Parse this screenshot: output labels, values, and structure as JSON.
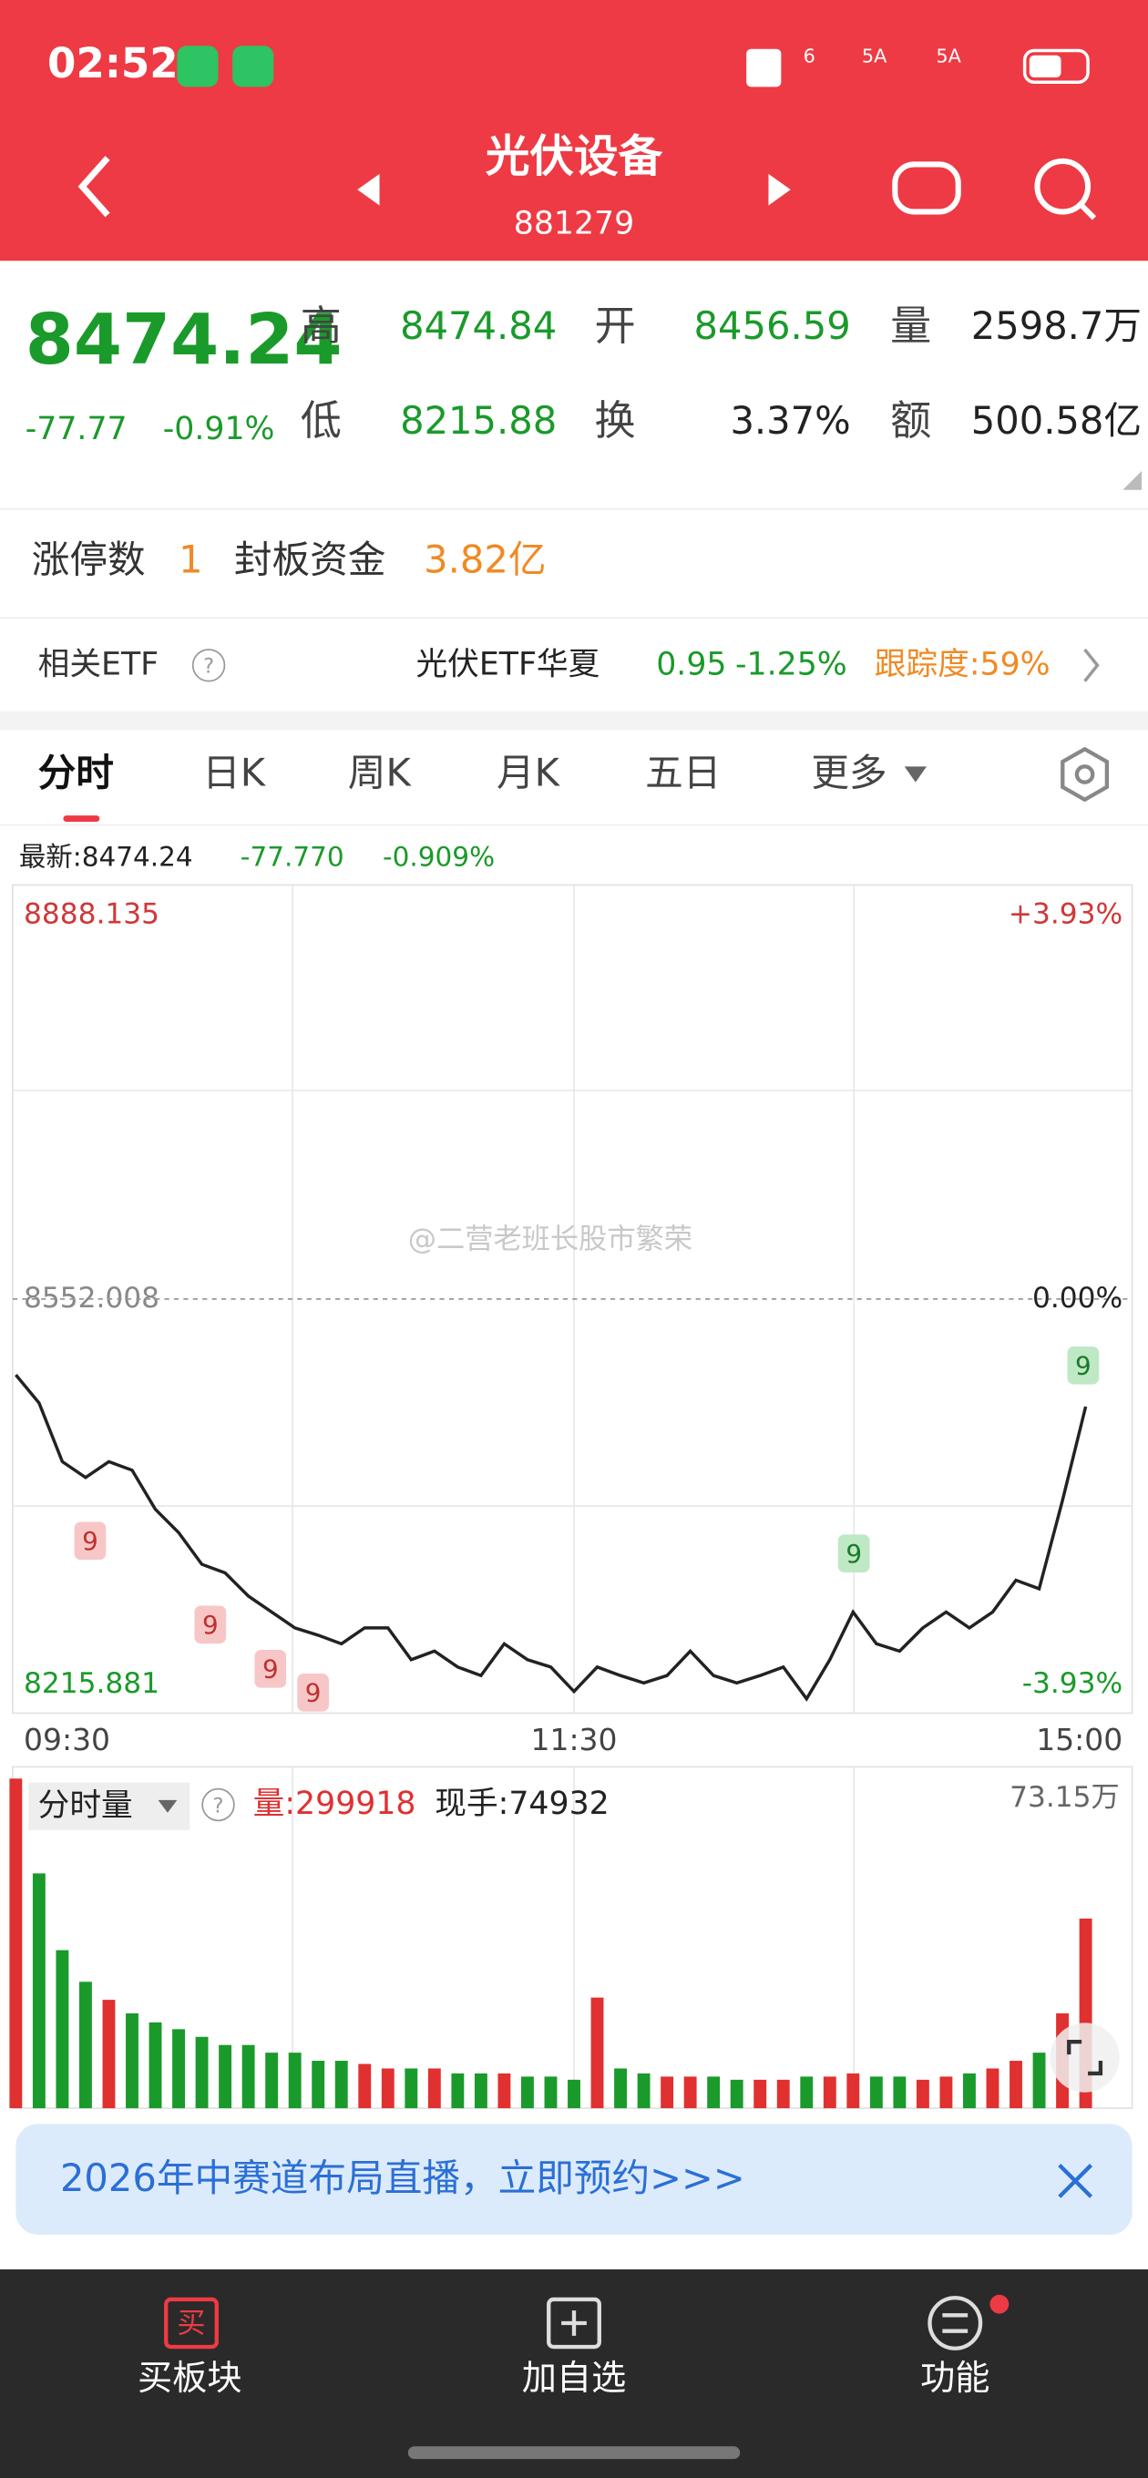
{
  "status": {
    "time": "02:52",
    "network": "6",
    "signals": [
      "5A",
      "5A"
    ]
  },
  "header": {
    "title": "光伏设备",
    "code": "881279"
  },
  "quote": {
    "price": "8474.24",
    "change": "-77.77",
    "change_pct": "-0.91%",
    "fields": [
      {
        "label": "高",
        "value": "8474.84"
      },
      {
        "label": "开",
        "value": "8456.59"
      },
      {
        "label": "量",
        "value": "2598.7万"
      },
      {
        "label": "低",
        "value": "8215.88"
      },
      {
        "label": "换",
        "value": "3.37%"
      },
      {
        "label": "额",
        "value": "500.58亿"
      }
    ]
  },
  "limit": {
    "label": "涨停数",
    "count": "1",
    "fund_label": "封板资金",
    "fund": "3.82亿"
  },
  "etf": {
    "label": "相关ETF",
    "help": "?",
    "name": "光伏ETF华夏",
    "price": "0.95",
    "change": "-1.25%",
    "tracking": "跟踪度:59%"
  },
  "tabs": [
    "分时",
    "日K",
    "周K",
    "月K",
    "五日",
    "更多"
  ],
  "info": {
    "latest": "最新:8474.24",
    "change": "-77.770",
    "change_pct": "-0.909%"
  },
  "watermark": "@二营老班长股市繁荣",
  "chart_data": [
    {
      "type": "line",
      "color": "#222222",
      "x": [
        "09:30",
        "09:35",
        "09:40",
        "09:45",
        "09:50",
        "09:55",
        "10:00",
        "10:05",
        "10:10",
        "10:15",
        "10:20",
        "10:25",
        "10:30",
        "10:35",
        "10:40",
        "10:45",
        "10:50",
        "10:55",
        "11:00",
        "11:05",
        "11:10",
        "11:15",
        "11:20",
        "11:25",
        "11:30",
        "13:05",
        "13:10",
        "13:15",
        "13:20",
        "13:25",
        "13:30",
        "13:35",
        "13:40",
        "13:45",
        "13:50",
        "13:55",
        "14:00",
        "14:05",
        "14:10",
        "14:15",
        "14:20",
        "14:25",
        "14:30",
        "14:35",
        "14:40",
        "14:45",
        "14:50"
      ],
      "values": [
        8490,
        8467,
        8419,
        8406,
        8419,
        8412,
        8380,
        8361,
        8335,
        8328,
        8309,
        8296,
        8283,
        8277,
        8270,
        8283,
        8283,
        8257,
        8264,
        8251,
        8244,
        8270,
        8257,
        8251,
        8231,
        8251,
        8244,
        8238,
        8244,
        8264,
        8244,
        8238,
        8244,
        8251,
        8225,
        8257,
        8296,
        8270,
        8264,
        8283,
        8296,
        8283,
        8296,
        8322,
        8315,
        8387,
        8464
      ],
      "xticks": [
        "09:30",
        "11:30",
        "15:00"
      ],
      "ylim": [
        8215.881,
        8888.135
      ],
      "yticks": [
        8888.135,
        8552.008,
        8215.881
      ],
      "y2lim": [
        -3.93,
        3.93
      ],
      "y2ticks": [
        {
          "value": 3.93,
          "label": "+3.93%"
        },
        {
          "value": 0,
          "label": "0.00%"
        },
        {
          "value": -3.93,
          "label": "-3.93%"
        }
      ],
      "annotations": [
        "9",
        "9",
        "9",
        "9",
        "9",
        "9"
      ]
    },
    {
      "type": "bar",
      "title": "分时量",
      "help": "?",
      "volume": "量:299918",
      "hand": "现手:74932",
      "up_color": "#e03030",
      "down_color": "#1a9a2a",
      "values": [
        73,
        52,
        35,
        28,
        24,
        21,
        19,
        17.5,
        15.8,
        14,
        14,
        12.3,
        12.3,
        10.5,
        10.5,
        9.8,
        8.8,
        8.8,
        8.8,
        7.7,
        7.7,
        7.7,
        7,
        7,
        6.3,
        24.5,
        8.8,
        7.7,
        7,
        7,
        7,
        6.3,
        6.3,
        6.3,
        7,
        7,
        7.7,
        7,
        7,
        6.3,
        7,
        7.7,
        8.8,
        10.5,
        12.3,
        21,
        42
      ],
      "ylim": [
        0,
        73.15
      ],
      "yticks": [
        {
          "value": 73.15,
          "label": "73.15万"
        }
      ]
    }
  ],
  "banner": "2026年中赛道布局直播，立即预约>>>",
  "nav": {
    "buy_icon": "买",
    "items": [
      "买板块",
      "加自选",
      "功能"
    ]
  }
}
